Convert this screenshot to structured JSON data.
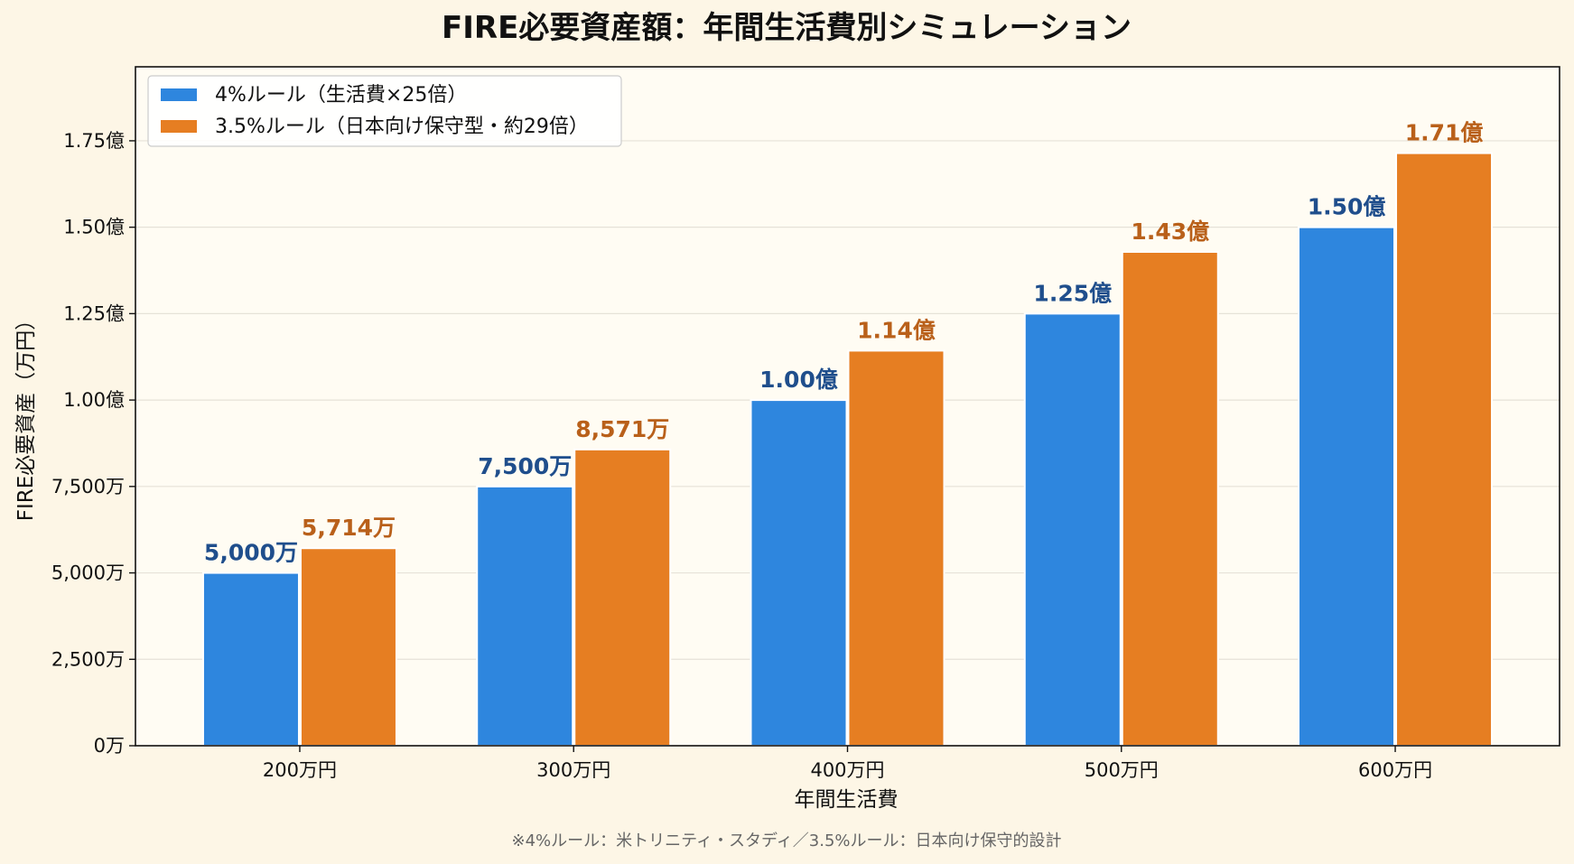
{
  "chart_data": {
    "type": "bar",
    "title": "FIRE必要資産額：年間生活費別シミュレーション",
    "xlabel": "年間生活費",
    "ylabel": "FIRE必要資産（万円）",
    "categories": [
      "200万円",
      "300万円",
      "400万円",
      "500万円",
      "600万円"
    ],
    "series": [
      {
        "name": "4%ルール（生活費×25倍）",
        "color": "#2e86de",
        "label_color": "#1f4e8c",
        "values": [
          5000,
          7500,
          10000,
          12500,
          15000
        ],
        "labels": [
          "5,000万",
          "7,500万",
          "1.00億",
          "1.25億",
          "1.50億"
        ]
      },
      {
        "name": "3.5%ルール（日本向け保守型・約29倍）",
        "color": "#e67e22",
        "label_color": "#b9601a",
        "values": [
          5714,
          8571,
          11429,
          14286,
          17143
        ],
        "labels": [
          "5,714万",
          "8,571万",
          "1.14億",
          "1.43億",
          "1.71億"
        ]
      }
    ],
    "ylim": [
      0,
      19640
    ],
    "yticks": [
      0,
      2500,
      5000,
      7500,
      10000,
      12500,
      15000,
      17500
    ],
    "ytick_labels": [
      "0万",
      "2,500万",
      "5,000万",
      "7,500万",
      "1.00億",
      "1.25億",
      "1.50億",
      "1.75億"
    ],
    "grid": "horizontal",
    "legend_position": "top-left",
    "footnote": "※4%ルール：米トリニティ・スタディ／3.5%ルール：日本向け保守的設計"
  },
  "colors": {
    "page_background": "#fdf6e6",
    "plot_background": "#fffcf3",
    "grid": "#e6e2d8",
    "axis": "#111111"
  }
}
